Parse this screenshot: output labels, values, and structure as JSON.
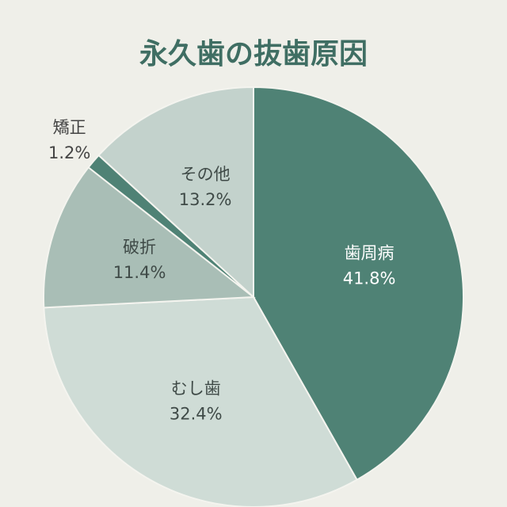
{
  "chart_data": {
    "type": "pie",
    "title": "永久歯の抜歯原因",
    "categories": [
      "歯周病",
      "むし歯",
      "破折",
      "矯正",
      "その他"
    ],
    "values": [
      41.8,
      32.4,
      11.4,
      1.2,
      13.2
    ],
    "value_labels": [
      "41.8%",
      "32.4%",
      "11.4%",
      "1.2%",
      "13.2%"
    ],
    "colors": [
      "#4f8275",
      "#cfdcd6",
      "#a9beb6",
      "#4f8275",
      "#c3d2cc"
    ]
  }
}
